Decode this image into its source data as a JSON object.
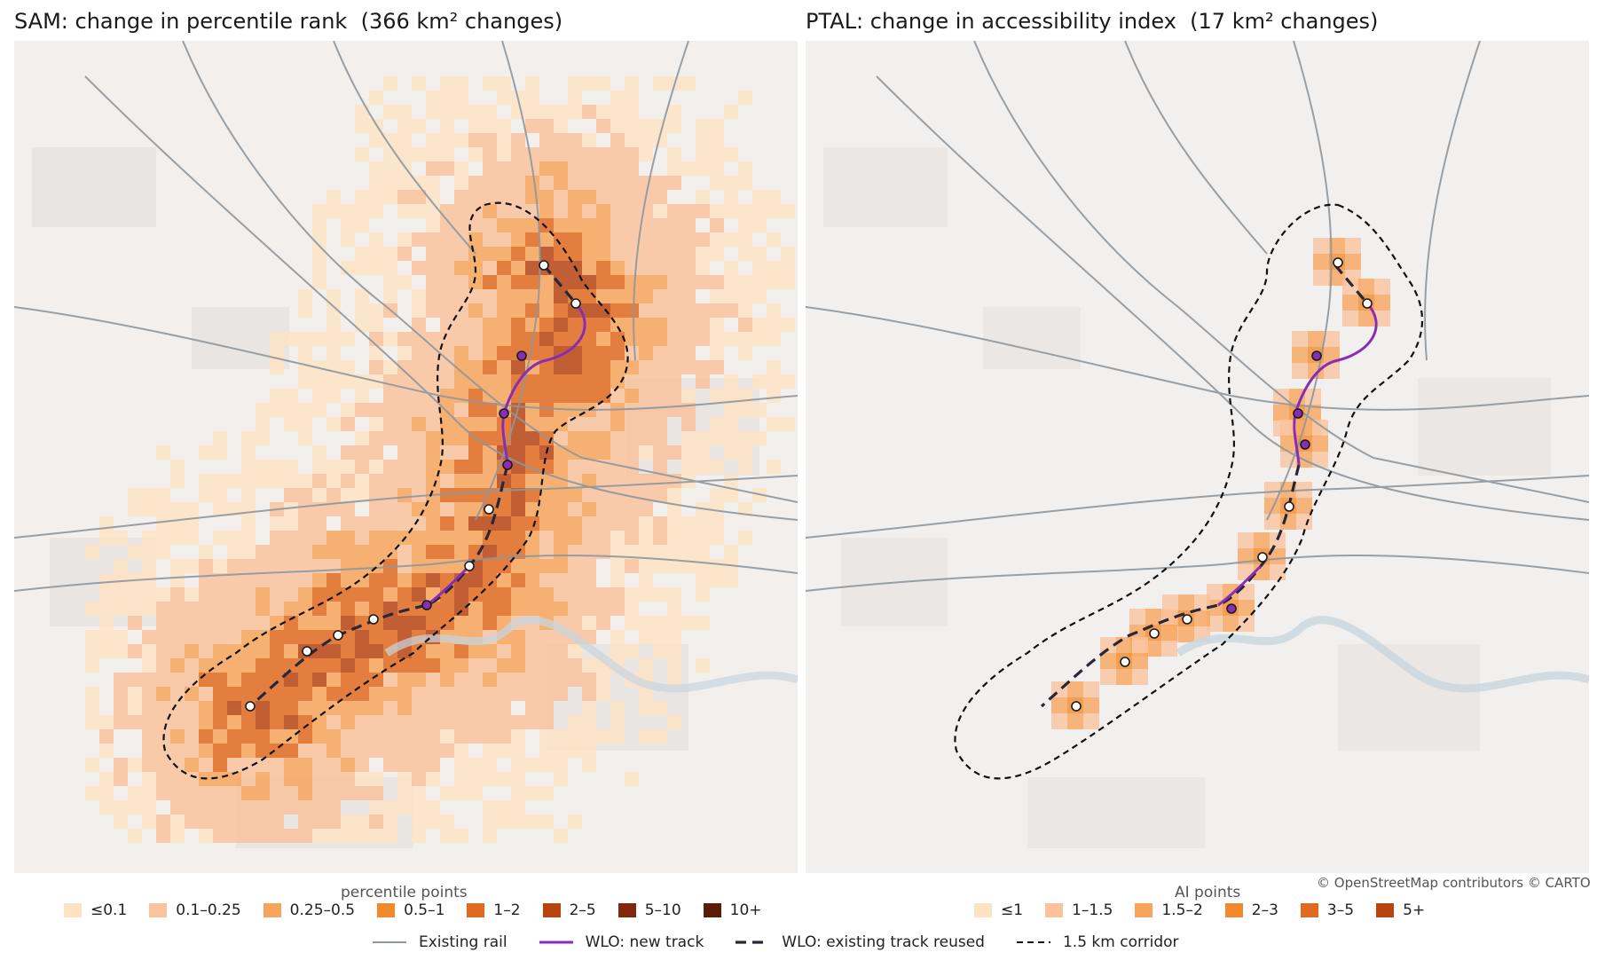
{
  "panels": [
    {
      "title": "SAM: change in percentile rank  (366 km² changes)",
      "legend_title": "percentile points",
      "legend": [
        {
          "label": "≤0.1",
          "color": "#fde3c4"
        },
        {
          "label": "0.1–0.25",
          "color": "#f9c39e"
        },
        {
          "label": "0.25–0.5",
          "color": "#f7a55c"
        },
        {
          "label": "0.5–1",
          "color": "#f18a2c"
        },
        {
          "label": "1–2",
          "color": "#e06a1f"
        },
        {
          "label": "2–5",
          "color": "#b84412"
        },
        {
          "label": "5–10",
          "color": "#80270d"
        },
        {
          "label": "10+",
          "color": "#5a1d07"
        }
      ]
    },
    {
      "title": "PTAL: change in accessibility index  (17 km² changes)",
      "legend_title": "AI points",
      "legend": [
        {
          "label": "≤1",
          "color": "#fde3c4"
        },
        {
          "label": "1–1.5",
          "color": "#f9c39e"
        },
        {
          "label": "1.5–2",
          "color": "#f7a55c"
        },
        {
          "label": "2–3",
          "color": "#f18a2c"
        },
        {
          "label": "3–5",
          "color": "#e06a1f"
        },
        {
          "label": "5+",
          "color": "#b84412"
        }
      ],
      "attribution": "© OpenStreetMap contributors © CARTO"
    }
  ],
  "line_legend": [
    {
      "label": "Existing rail",
      "style": "rail"
    },
    {
      "label": "WLO: new track",
      "style": "new"
    },
    {
      "label": "WLO: existing track reused",
      "style": "reused"
    },
    {
      "label": "1.5 km corridor",
      "style": "corridor"
    }
  ],
  "colors": {
    "basemap": "#f2f0ee",
    "rail": "#8e979e",
    "new_track": "#8a2cb5",
    "reused_track": "#26283a",
    "corridor": "#111111"
  }
}
